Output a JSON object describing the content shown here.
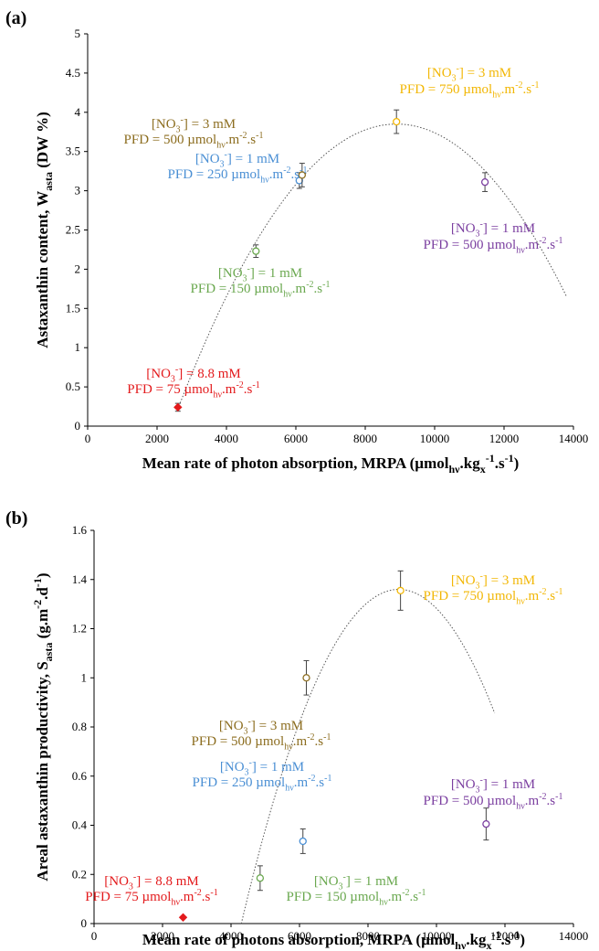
{
  "chart_data": [
    {
      "type": "scatter",
      "panel_label": "(a)",
      "xlabel": "Mean rate of photon absorption, MRPA (µmol",
      "xlabel_sub1": "hν",
      "xlabel_mid": ".kg",
      "xlabel_sub2": "x",
      "xlabel_sup": "-1",
      "xlabel_end": ".s",
      "xlabel_sup2": "-1",
      "xlabel_close": ")",
      "ylabel_main": "Astaxanthin content, W",
      "ylabel_sub": "asta",
      "ylabel_end": " (DW %)",
      "xlim": [
        0,
        14000
      ],
      "ylim": [
        0,
        5
      ],
      "xticks": [
        "0",
        "2000",
        "4000",
        "6000",
        "8000",
        "10000",
        "12000",
        "14000"
      ],
      "yticks": [
        "0",
        "0.5",
        "1",
        "1.5",
        "2",
        "2.5",
        "3",
        "3.5",
        "4",
        "4.5",
        "5"
      ],
      "xtick_values": [
        0,
        2000,
        4000,
        6000,
        8000,
        10000,
        12000,
        14000
      ],
      "ytick_values": [
        0,
        0.5,
        1,
        1.5,
        2,
        2.5,
        3,
        3.5,
        4,
        4.5,
        5
      ],
      "points": [
        {
          "x": 2600,
          "y": 0.24,
          "err": 0.05,
          "color": "#e31a1c",
          "marker": "diamond"
        },
        {
          "x": 4850,
          "y": 2.23,
          "err": 0.08,
          "color": "#6aa84f",
          "marker": "circle"
        },
        {
          "x": 6100,
          "y": 3.13,
          "err": 0.1,
          "color": "#4a8fd4",
          "marker": "circle"
        },
        {
          "x": 6180,
          "y": 3.2,
          "err": 0.15,
          "color": "#8c6d1f",
          "marker": "circle"
        },
        {
          "x": 8900,
          "y": 3.88,
          "err": 0.15,
          "color": "#f2b705",
          "marker": "circle"
        },
        {
          "x": 11450,
          "y": 3.11,
          "err": 0.12,
          "color": "#7b3fa0",
          "marker": "circle"
        }
      ],
      "fit": {
        "x_start": 2600,
        "x_end": 13800,
        "vertex_x": 8900,
        "vertex_y": 3.85,
        "a": -9.15e-08
      },
      "annotations": [
        {
          "line1_pre": "[NO",
          "line1_sub": "3",
          "line1_sup": "-",
          "line1_post": "] = 8.8 mM",
          "line2_pre": "PFD = 75 µmol",
          "line2_sub": "hν",
          "line2_post": ".m",
          "line2_sup": "-2",
          "line2_mid": ".s",
          "line2_sup2": "-1",
          "color": "#e31a1c"
        },
        {
          "line1_pre": "[NO",
          "line1_sub": "3",
          "line1_sup": "-",
          "line1_post": "] = 1 mM",
          "line2_pre": "PFD = 150 µmol",
          "line2_sub": "hν",
          "line2_post": ".m",
          "line2_sup": "-2",
          "line2_mid": ".s",
          "line2_sup2": "-1",
          "color": "#6aa84f"
        },
        {
          "line1_pre": "[NO",
          "line1_sub": "3",
          "line1_sup": "-",
          "line1_post": "] = 1 mM",
          "line2_pre": "PFD = 250 µmol",
          "line2_sub": "hν",
          "line2_post": ".m",
          "line2_sup": "-2",
          "line2_mid": ".s",
          "line2_sup2": "-1",
          "color": "#4a8fd4"
        },
        {
          "line1_pre": "[NO",
          "line1_sub": "3",
          "line1_sup": "-",
          "line1_post": "] = 3 mM",
          "line2_pre": "PFD = 500 µmol",
          "line2_sub": "hν",
          "line2_post": ".m",
          "line2_sup": "-2",
          "line2_mid": ".s",
          "line2_sup2": "-1",
          "color": "#8c6d1f"
        },
        {
          "line1_pre": "[NO",
          "line1_sub": "3",
          "line1_sup": "-",
          "line1_post": "] = 3 mM",
          "line2_pre": "PFD = 750 µmol",
          "line2_sub": "hν",
          "line2_post": ".m",
          "line2_sup": "-2",
          "line2_mid": ".s",
          "line2_sup2": "-1",
          "color": "#f2b705"
        },
        {
          "line1_pre": "[NO",
          "line1_sub": "3",
          "line1_sup": "-",
          "line1_post": "] = 1 mM",
          "line2_pre": "PFD = 500 µmol",
          "line2_sub": "hν",
          "line2_post": ".m",
          "line2_sup": "-2",
          "line2_mid": ".s",
          "line2_sup2": "-1",
          "color": "#7b3fa0"
        }
      ]
    },
    {
      "type": "scatter",
      "panel_label": "(b)",
      "xlabel": "Mean rate of photons absorption, MRPA (µmol",
      "xlabel_sub1": "hν",
      "xlabel_mid": ".kg",
      "xlabel_sub2": "x",
      "xlabel_sup": "-1",
      "xlabel_end": ".s",
      "xlabel_sup2": "-1",
      "xlabel_close": ")",
      "ylabel_main": "Areal astaxanthin productivity, S",
      "ylabel_sub": "asta",
      "ylabel_end": " (g.m",
      "ylabel_sup": "-2",
      "ylabel_end2": ".d",
      "ylabel_sup2": "-1",
      "ylabel_close": ")",
      "xlim": [
        0,
        14000
      ],
      "ylim": [
        0,
        1.6
      ],
      "xticks": [
        "0",
        "2000",
        "4000",
        "6000",
        "8000",
        "10000",
        "12000",
        "14000"
      ],
      "yticks": [
        "0",
        "0.2",
        "0.4",
        "0.6",
        "0.8",
        "1",
        "1.2",
        "1.4",
        "1.6"
      ],
      "xtick_values": [
        0,
        2000,
        4000,
        6000,
        8000,
        10000,
        12000,
        14000
      ],
      "ytick_values": [
        0,
        0.2,
        0.4,
        0.6,
        0.8,
        1,
        1.2,
        1.4,
        1.6
      ],
      "points": [
        {
          "x": 2600,
          "y": 0.025,
          "err": 0.0,
          "color": "#e31a1c",
          "marker": "diamond"
        },
        {
          "x": 4850,
          "y": 0.185,
          "err": 0.05,
          "color": "#6aa84f",
          "marker": "circle"
        },
        {
          "x": 6100,
          "y": 0.335,
          "err": 0.05,
          "color": "#4a8fd4",
          "marker": "circle"
        },
        {
          "x": 6200,
          "y": 1.0,
          "err": 0.07,
          "color": "#8c6d1f",
          "marker": "circle"
        },
        {
          "x": 8950,
          "y": 1.355,
          "err": 0.08,
          "color": "#f2b705",
          "marker": "circle"
        },
        {
          "x": 11450,
          "y": 0.405,
          "err": 0.065,
          "color": "#7b3fa0",
          "marker": "circle"
        }
      ],
      "fit": {
        "x_start": 4300,
        "x_end": 11700,
        "vertex_x": 8900,
        "vertex_y": 1.36,
        "a": -6.43e-08
      },
      "annotations": [
        {
          "line1_pre": "[NO",
          "line1_sub": "3",
          "line1_sup": "-",
          "line1_post": "] = 8.8 mM",
          "line2_pre": "PFD = 75 µmol",
          "line2_sub": "hν",
          "line2_post": ".m",
          "line2_sup": "-2",
          "line2_mid": ".s",
          "line2_sup2": "-1",
          "color": "#e31a1c"
        },
        {
          "line1_pre": "[NO",
          "line1_sub": "3",
          "line1_sup": "-",
          "line1_post": "] = 1 mM",
          "line2_pre": "PFD = 150 µmol",
          "line2_sub": "hν",
          "line2_post": ".m",
          "line2_sup": "-2",
          "line2_mid": ".s",
          "line2_sup2": "-1",
          "color": "#6aa84f"
        },
        {
          "line1_pre": "[NO",
          "line1_sub": "3",
          "line1_sup": "-",
          "line1_post": "] = 1 mM",
          "line2_pre": "PFD = 250 µmol",
          "line2_sub": "hν",
          "line2_post": ".m",
          "line2_sup": "-2",
          "line2_mid": ".s",
          "line2_sup2": "-1",
          "color": "#4a8fd4"
        },
        {
          "line1_pre": "[NO",
          "line1_sub": "3",
          "line1_sup": "-",
          "line1_post": "] = 3 mM",
          "line2_pre": "PFD = 500 µmol",
          "line2_sub": "hν",
          "line2_post": ".m",
          "line2_sup": "-2",
          "line2_mid": ".s",
          "line2_sup2": "-1",
          "color": "#8c6d1f"
        },
        {
          "line1_pre": "[NO",
          "line1_sub": "3",
          "line1_sup": "-",
          "line1_post": "] = 3 mM",
          "line2_pre": "PFD = 750 µmol",
          "line2_sub": "hν",
          "line2_post": ".m",
          "line2_sup": "-2",
          "line2_mid": ".s",
          "line2_sup2": "-1",
          "color": "#f2b705"
        },
        {
          "line1_pre": "[NO",
          "line1_sub": "3",
          "line1_sup": "-",
          "line1_post": "] = 1 mM",
          "line2_pre": "PFD = 500 µmol",
          "line2_sub": "hν",
          "line2_post": ".m",
          "line2_sup": "-2",
          "line2_mid": ".s",
          "line2_sup2": "-1",
          "color": "#7b3fa0"
        }
      ]
    }
  ]
}
